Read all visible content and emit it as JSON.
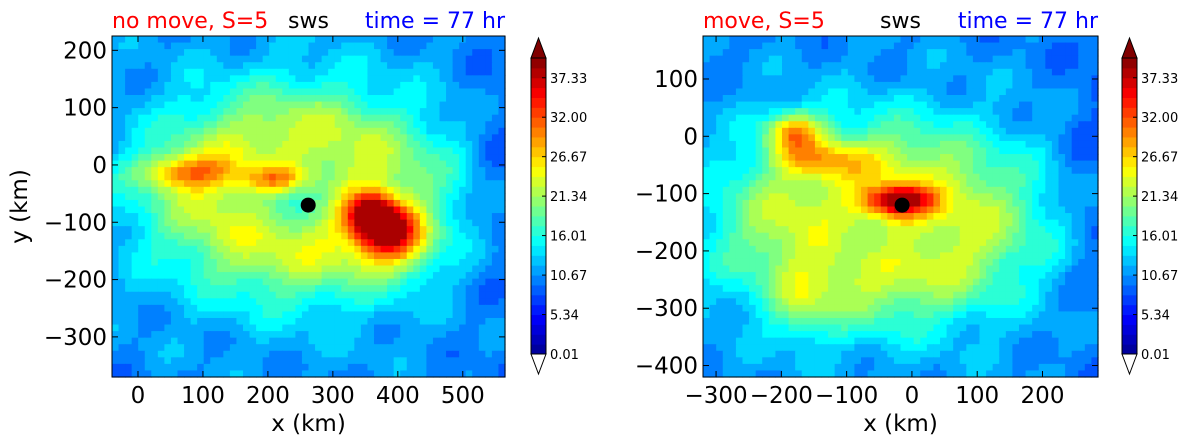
{
  "chart_data": [
    {
      "type": "heatmap",
      "title_left": "no move, S=5",
      "title_center": "sws",
      "title_right": "time = 77 hr",
      "title_colors": {
        "left": "#ff0000",
        "center": "#000000",
        "right": "#0000ff"
      },
      "xlabel": "x (km)",
      "ylabel": "y (km)",
      "xlim": [
        -40,
        565
      ],
      "ylim": [
        -370,
        225
      ],
      "xticks": [
        0,
        100,
        200,
        300,
        400,
        500
      ],
      "yticks": [
        -300,
        -200,
        -100,
        0,
        100,
        200
      ],
      "center_marker": {
        "x": 262,
        "y": -70
      },
      "colorbar": {
        "min": 0.01,
        "max": 40.0,
        "tick_values": [
          0.01,
          5.34,
          10.67,
          16.01,
          21.34,
          26.67,
          32.0,
          37.33
        ],
        "extend": "both"
      }
    },
    {
      "type": "heatmap",
      "title_left": "move, S=5",
      "title_center": "sws",
      "title_right": "time = 77 hr",
      "title_colors": {
        "left": "#ff0000",
        "center": "#000000",
        "right": "#0000ff"
      },
      "xlabel": "x (km)",
      "ylabel": "",
      "xlim": [
        -320,
        285
      ],
      "ylim": [
        -420,
        175
      ],
      "xticks": [
        -300,
        -200,
        -100,
        0,
        100,
        200
      ],
      "yticks": [
        -400,
        -300,
        -200,
        -100,
        0,
        100
      ],
      "center_marker": {
        "x": -15,
        "y": -120
      },
      "colorbar": {
        "min": 0.01,
        "max": 40.0,
        "tick_values": [
          0.01,
          5.34,
          10.67,
          16.01,
          21.34,
          26.67,
          32.0,
          37.33
        ],
        "extend": "both"
      }
    }
  ],
  "colormap": [
    "#00008f",
    "#0000ff",
    "#0080ff",
    "#00ffff",
    "#80ff80",
    "#ffff00",
    "#ff8000",
    "#ff0000",
    "#800000"
  ]
}
